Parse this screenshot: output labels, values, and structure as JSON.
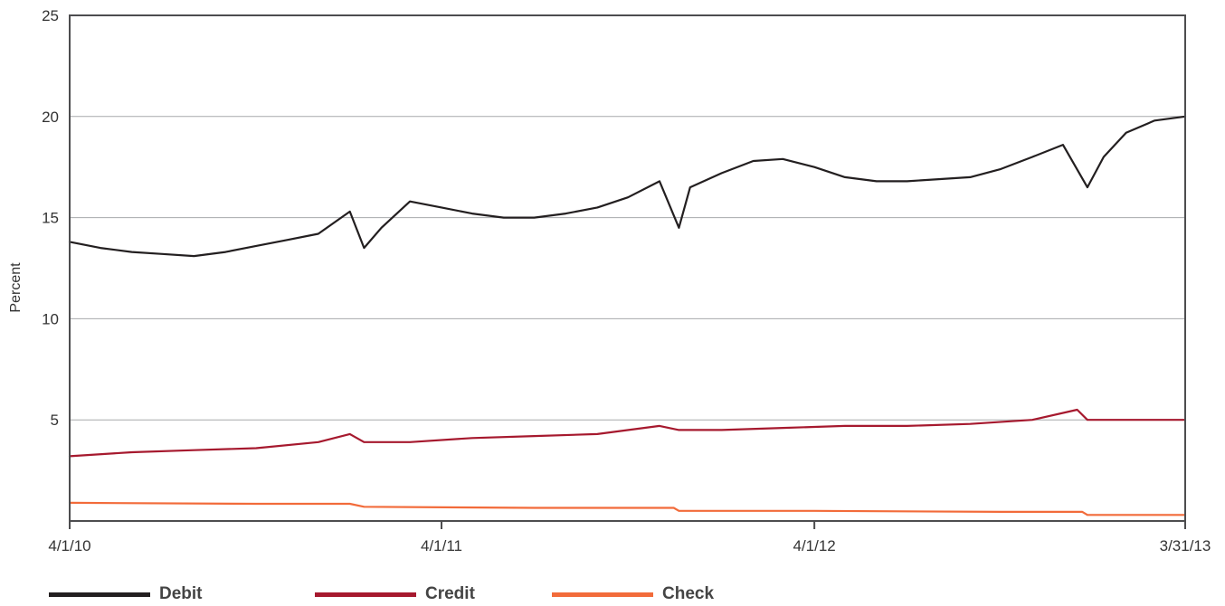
{
  "chart_data": {
    "type": "line",
    "ylabel": "Percent",
    "ylim": [
      0,
      25
    ],
    "yticks": [
      5,
      10,
      15,
      20,
      25
    ],
    "xlim": [
      "2010-04-01",
      "2013-03-31"
    ],
    "xticks": [
      {
        "date": "2010-04-01",
        "label": "4/1/10"
      },
      {
        "date": "2011-04-01",
        "label": "4/1/11"
      },
      {
        "date": "2012-04-01",
        "label": "4/1/12"
      },
      {
        "date": "2013-03-31",
        "label": "3/31/13"
      }
    ],
    "grid": true,
    "legend_position": "bottom",
    "series": [
      {
        "name": "Debit",
        "color": "#231f20",
        "points": [
          [
            "2010-04-01",
            13.8
          ],
          [
            "2010-05-01",
            13.5
          ],
          [
            "2010-06-01",
            13.3
          ],
          [
            "2010-07-01",
            13.2
          ],
          [
            "2010-08-01",
            13.1
          ],
          [
            "2010-09-01",
            13.3
          ],
          [
            "2010-10-01",
            13.6
          ],
          [
            "2010-11-01",
            13.9
          ],
          [
            "2010-12-01",
            14.2
          ],
          [
            "2011-01-01",
            15.3
          ],
          [
            "2011-01-15",
            13.5
          ],
          [
            "2011-02-01",
            14.5
          ],
          [
            "2011-03-01",
            15.8
          ],
          [
            "2011-04-01",
            15.5
          ],
          [
            "2011-05-01",
            15.2
          ],
          [
            "2011-06-01",
            15.0
          ],
          [
            "2011-07-01",
            15.0
          ],
          [
            "2011-08-01",
            15.2
          ],
          [
            "2011-09-01",
            15.5
          ],
          [
            "2011-10-01",
            16.0
          ],
          [
            "2011-11-01",
            16.8
          ],
          [
            "2011-11-20",
            14.5
          ],
          [
            "2011-12-01",
            16.5
          ],
          [
            "2012-01-01",
            17.2
          ],
          [
            "2012-02-01",
            17.8
          ],
          [
            "2012-03-01",
            17.9
          ],
          [
            "2012-04-01",
            17.5
          ],
          [
            "2012-05-01",
            17.0
          ],
          [
            "2012-06-01",
            16.8
          ],
          [
            "2012-07-01",
            16.8
          ],
          [
            "2012-08-01",
            16.9
          ],
          [
            "2012-09-01",
            17.0
          ],
          [
            "2012-10-01",
            17.4
          ],
          [
            "2012-11-01",
            18.0
          ],
          [
            "2012-12-01",
            18.6
          ],
          [
            "2012-12-25",
            16.5
          ],
          [
            "2013-01-10",
            18.0
          ],
          [
            "2013-02-01",
            19.2
          ],
          [
            "2013-03-01",
            19.8
          ],
          [
            "2013-03-31",
            20.0
          ]
        ]
      },
      {
        "name": "Credit",
        "color": "#a6192e",
        "points": [
          [
            "2010-04-01",
            3.2
          ],
          [
            "2010-06-01",
            3.4
          ],
          [
            "2010-08-01",
            3.5
          ],
          [
            "2010-10-01",
            3.6
          ],
          [
            "2010-12-01",
            3.9
          ],
          [
            "2011-01-01",
            4.3
          ],
          [
            "2011-01-15",
            3.9
          ],
          [
            "2011-03-01",
            3.9
          ],
          [
            "2011-05-01",
            4.1
          ],
          [
            "2011-07-01",
            4.2
          ],
          [
            "2011-09-01",
            4.3
          ],
          [
            "2011-11-01",
            4.7
          ],
          [
            "2011-11-20",
            4.5
          ],
          [
            "2012-01-01",
            4.5
          ],
          [
            "2012-03-01",
            4.6
          ],
          [
            "2012-05-01",
            4.7
          ],
          [
            "2012-07-01",
            4.7
          ],
          [
            "2012-09-01",
            4.8
          ],
          [
            "2012-11-01",
            5.0
          ],
          [
            "2012-12-15",
            5.5
          ],
          [
            "2012-12-25",
            5.0
          ],
          [
            "2013-02-01",
            5.0
          ],
          [
            "2013-03-31",
            5.0
          ]
        ]
      },
      {
        "name": "Check",
        "color": "#f26b3a",
        "points": [
          [
            "2010-04-01",
            0.9
          ],
          [
            "2010-10-01",
            0.85
          ],
          [
            "2011-01-01",
            0.85
          ],
          [
            "2011-01-15",
            0.7
          ],
          [
            "2011-07-01",
            0.65
          ],
          [
            "2011-11-15",
            0.65
          ],
          [
            "2011-11-20",
            0.5
          ],
          [
            "2012-04-01",
            0.5
          ],
          [
            "2012-10-01",
            0.45
          ],
          [
            "2012-12-20",
            0.45
          ],
          [
            "2012-12-25",
            0.3
          ],
          [
            "2013-03-31",
            0.3
          ]
        ]
      }
    ]
  }
}
